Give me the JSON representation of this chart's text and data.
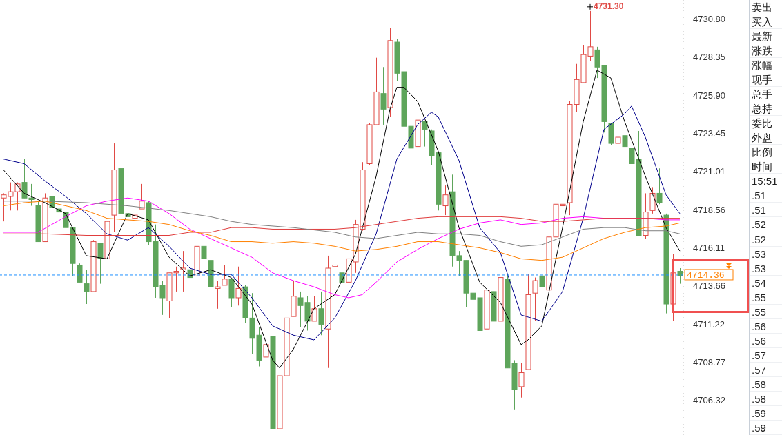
{
  "chart_data": {
    "type": "candlestick",
    "categories": [
      null,
      null,
      null,
      null,
      null,
      null,
      null,
      null,
      null,
      null,
      null,
      null,
      null,
      null,
      null,
      null,
      null,
      null,
      null,
      null,
      null,
      null,
      null,
      null,
      null,
      null,
      null,
      null,
      null,
      null,
      null,
      null,
      null,
      null,
      null,
      null,
      null,
      null,
      null,
      null,
      null,
      null,
      null,
      null,
      null,
      null,
      null,
      null,
      null,
      null,
      null,
      null,
      null,
      null,
      null,
      null,
      null,
      null,
      null,
      null,
      null,
      null,
      null,
      null,
      null,
      null,
      null,
      null,
      null,
      null,
      null,
      null,
      null,
      null,
      null,
      null,
      null,
      null,
      null,
      null,
      null,
      null,
      null,
      null,
      null,
      null,
      null,
      null,
      null,
      null,
      null,
      null,
      null,
      null,
      null,
      null,
      null,
      null,
      null
    ],
    "ohlc": [
      [
        4719.3,
        4719.6,
        4717.8,
        4719.5
      ],
      [
        4719.4,
        4720.3,
        4718.5,
        4719.7
      ],
      [
        4719.7,
        4720.3,
        4718.5,
        4720.2
      ],
      [
        4720.3,
        4721.8,
        4719.3,
        4719.3
      ],
      [
        4719.3,
        4720.2,
        4718.8,
        4719.2
      ],
      [
        4718.8,
        4719.1,
        4716.5,
        4716.5
      ],
      [
        4716.5,
        4719.6,
        4716.5,
        4719.3
      ],
      [
        4719.4,
        4720.0,
        4717.8,
        4718.7
      ],
      [
        4718.6,
        4720.7,
        4718.0,
        4718.4
      ],
      [
        4718.4,
        4718.6,
        4716.8,
        4717.4
      ],
      [
        4717.4,
        4717.4,
        4714.3,
        4715.1
      ],
      [
        4715.0,
        4715.1,
        4713.9,
        4713.9
      ],
      [
        4713.8,
        4714.7,
        4712.5,
        4713.3
      ],
      [
        4713.3,
        4716.6,
        4713.3,
        4716.5
      ],
      [
        4716.4,
        4716.4,
        4713.8,
        4715.4
      ],
      [
        4715.4,
        4717.8,
        4715.4,
        4717.8
      ],
      [
        4718.2,
        4722.8,
        4717.1,
        4721.1
      ],
      [
        4721.2,
        4721.8,
        4718.2,
        4718.3
      ],
      [
        4718.3,
        4719.3,
        4717.0,
        4718.1
      ],
      [
        4718.0,
        4718.4,
        4716.8,
        4718.2
      ],
      [
        4718.6,
        4720.2,
        4718.6,
        4719.1
      ],
      [
        4719.0,
        4719.1,
        4716.3,
        4716.5
      ],
      [
        4716.5,
        4717.6,
        4712.9,
        4713.6
      ],
      [
        4713.7,
        4714.0,
        4711.8,
        4712.9
      ],
      [
        4712.7,
        4714.5,
        4711.6,
        4714.5
      ],
      [
        4714.5,
        4714.9,
        4713.3,
        4714.6
      ],
      [
        4714.7,
        4715.9,
        4713.3,
        4714.8
      ],
      [
        4714.7,
        4715.5,
        4713.8,
        4714.2
      ],
      [
        4714.3,
        4716.6,
        4714.3,
        4716.2
      ],
      [
        4716.2,
        4718.8,
        4715.4,
        4715.4
      ],
      [
        4715.3,
        4715.7,
        4712.6,
        4713.6
      ],
      [
        4713.5,
        4714.0,
        4712.2,
        4713.6
      ],
      [
        4713.7,
        4715.0,
        4713.7,
        4714.1
      ],
      [
        4714.1,
        4714.1,
        4712.3,
        4712.9
      ],
      [
        4712.9,
        4714.9,
        4712.4,
        4713.5
      ],
      [
        4713.6,
        4713.7,
        4711.3,
        4711.6
      ],
      [
        4711.6,
        4713.2,
        4709.3,
        4710.3
      ],
      [
        4710.5,
        4711.0,
        4708.5,
        4708.9
      ],
      [
        4709.1,
        4710.7,
        4708.2,
        4709.9
      ],
      [
        4710.4,
        4711.8,
        4704.5,
        4704.5
      ],
      [
        4704.5,
        4708.2,
        4704.2,
        4707.9
      ],
      [
        4707.9,
        4711.6,
        4707.9,
        4711.6
      ],
      [
        4711.7,
        4714.0,
        4711.7,
        4713.0
      ],
      [
        4712.9,
        4713.3,
        4711.0,
        4712.4
      ],
      [
        4712.6,
        4713.0,
        4710.8,
        4711.4
      ],
      [
        4711.4,
        4713.0,
        4711.4,
        4712.2
      ],
      [
        4712.2,
        4713.3,
        4710.5,
        4711.2
      ],
      [
        4710.9,
        4715.6,
        4708.4,
        4714.8
      ],
      [
        4714.9,
        4715.2,
        4711.1,
        4715.0
      ],
      [
        4714.5,
        4714.8,
        4713.2,
        4713.9
      ],
      [
        4713.9,
        4716.5,
        4713.2,
        4715.4
      ],
      [
        4715.2,
        4717.9,
        4714.5,
        4717.6
      ],
      [
        4717.3,
        4721.6,
        4717.2,
        4721.1
      ],
      [
        4721.5,
        4724.1,
        4721.4,
        4724.0
      ],
      [
        4724.0,
        4728.3,
        4724.0,
        4726.1
      ],
      [
        4726.0,
        4727.7,
        4724.0,
        4725.0
      ],
      [
        4725.1,
        4730.2,
        4724.5,
        4729.4
      ],
      [
        4729.3,
        4729.5,
        4726.8,
        4727.3
      ],
      [
        4727.4,
        4727.5,
        4723.9,
        4723.9
      ],
      [
        4723.9,
        4724.7,
        4722.2,
        4722.5
      ],
      [
        4722.6,
        4725.1,
        4721.9,
        4724.3
      ],
      [
        4724.2,
        4724.2,
        4722.6,
        4723.7
      ],
      [
        4723.6,
        4723.7,
        4721.4,
        4722.0
      ],
      [
        4722.2,
        4722.2,
        4718.5,
        4718.9
      ],
      [
        4718.8,
        4720.1,
        4718.2,
        4719.5
      ],
      [
        4719.7,
        4720.8,
        4714.9,
        4715.6
      ],
      [
        4715.6,
        4715.9,
        4714.3,
        4715.3
      ],
      [
        4715.3,
        4715.3,
        4712.3,
        4713.2
      ],
      [
        4713.2,
        4714.5,
        4712.8,
        4712.8
      ],
      [
        4712.9,
        4713.4,
        4710.0,
        4710.8
      ],
      [
        4710.9,
        4713.6,
        4710.4,
        4713.4
      ],
      [
        4713.3,
        4713.3,
        4711.4,
        4711.4
      ],
      [
        4711.4,
        4714.2,
        4711.4,
        4714.2
      ],
      [
        4714.1,
        4714.4,
        4708.4,
        4708.4
      ],
      [
        4708.7,
        4708.9,
        4705.7,
        4707.0
      ],
      [
        4707.2,
        4708.7,
        4706.5,
        4708.1
      ],
      [
        4708.3,
        4714.4,
        4708.3,
        4713.1
      ],
      [
        4713.2,
        4714.2,
        4711.4,
        4714.0
      ],
      [
        4714.3,
        4714.4,
        4710.4,
        4713.6
      ],
      [
        4713.4,
        4716.9,
        4713.3,
        4716.8
      ],
      [
        4716.8,
        4722.3,
        4716.8,
        4718.9
      ],
      [
        4718.8,
        4720.7,
        4718.7,
        4718.9
      ],
      [
        4719.0,
        4725.5,
        4718.2,
        4725.3
      ],
      [
        4725.3,
        4727.9,
        4724.8,
        4726.9
      ],
      [
        4726.7,
        4729.1,
        4726.7,
        4728.5
      ],
      [
        4728.4,
        4731.3,
        4728.1,
        4729.0
      ],
      [
        4728.8,
        4729.0,
        4727.0,
        4727.7
      ],
      [
        4727.8,
        4727.8,
        4723.5,
        4724.2
      ],
      [
        4724.1,
        4724.1,
        4722.7,
        4722.8
      ],
      [
        4722.8,
        4723.6,
        4722.2,
        4723.2
      ],
      [
        4723.3,
        4723.7,
        4722.5,
        4722.6
      ],
      [
        4722.5,
        4723.0,
        4720.5,
        4721.5
      ],
      [
        4721.8,
        4723.6,
        4716.9,
        4716.9
      ],
      [
        4716.9,
        4719.6,
        4716.7,
        4718.4
      ],
      [
        4718.5,
        4720.0,
        4718.3,
        4719.6
      ],
      [
        4719.6,
        4721.2,
        4718.9,
        4719.0
      ],
      [
        4718.2,
        4718.3,
        4711.9,
        4712.5
      ],
      [
        4712.5,
        4715.7,
        4711.4,
        4714.5
      ],
      [
        4714.6,
        4714.8,
        4713.8,
        4714.3
      ]
    ],
    "series": [
      {
        "type": "line",
        "color": "#000000",
        "values": [
          4721.1,
          null,
          null,
          4719.6,
          null,
          null,
          4719.0,
          null,
          null,
          4718.3,
          null,
          null,
          4715.6,
          null,
          null,
          4715.4,
          null,
          null,
          4718.3,
          null,
          null,
          4717.9,
          null,
          null,
          4715.5,
          null,
          null,
          4714.3,
          null,
          null,
          4714.7,
          null,
          null,
          4714.2,
          null,
          null,
          4712.5,
          null,
          null,
          4708.9,
          4708.4,
          null,
          4709.6,
          null,
          null,
          4712.2,
          null,
          null,
          4713.1,
          null,
          null,
          4715.7,
          null,
          null,
          4720.7,
          null,
          4725.0,
          4726.4,
          4726.4,
          null,
          4725.5,
          null,
          null,
          4722.3,
          null,
          null,
          4717.4,
          null,
          null,
          4713.9,
          null,
          null,
          4712.6,
          null,
          null,
          4709.9,
          4710.2,
          null,
          4711.1,
          null,
          null,
          4717.4,
          null,
          null,
          4724.2,
          null,
          4727.5,
          null,
          4727.0,
          null,
          4724.2,
          null,
          null,
          4720.7,
          null,
          null,
          4717.4,
          null,
          4715.9
        ]
      },
      {
        "type": "line",
        "color": "#00008b",
        "values": [
          4721.8,
          null,
          null,
          4721.5,
          null,
          null,
          4720.4,
          null,
          null,
          4719.4,
          null,
          null,
          4718.3,
          null,
          null,
          4717.0,
          null,
          null,
          4716.6,
          null,
          null,
          4717.4,
          null,
          null,
          4716.2,
          null,
          null,
          4714.8,
          null,
          null,
          4714.4,
          null,
          null,
          4714.4,
          null,
          null,
          4712.9,
          null,
          null,
          4711.1,
          null,
          null,
          4710.5,
          null,
          null,
          4710.2,
          null,
          null,
          4711.6,
          null,
          null,
          4714.0,
          null,
          null,
          4717.0,
          null,
          null,
          4721.8,
          null,
          null,
          4724.0,
          null,
          4724.8,
          4724.5,
          null,
          null,
          4721.7,
          null,
          null,
          4717.4,
          null,
          null,
          4715.8,
          null,
          null,
          4711.8,
          null,
          null,
          4711.4,
          null,
          null,
          4713.3,
          null,
          null,
          4718.0,
          null,
          null,
          4723.7,
          null,
          null,
          4724.7,
          4725.2,
          null,
          4723.2,
          null,
          null,
          4719.5,
          null,
          4718.3
        ]
      },
      {
        "type": "line",
        "color": "#ff00ff",
        "values": [
          4717.1,
          null,
          null,
          null,
          null,
          4717.1,
          null,
          null,
          null,
          4718.1,
          null,
          null,
          4718.8,
          null,
          null,
          4719.1,
          null,
          null,
          4719.3,
          null,
          null,
          4719.1,
          null,
          null,
          4718.3,
          null,
          null,
          4717.3,
          null,
          null,
          4716.7,
          null,
          null,
          4716.1,
          null,
          null,
          4715.5,
          null,
          null,
          4714.5,
          null,
          null,
          4714.0,
          null,
          null,
          4713.6,
          null,
          null,
          4713.1,
          null,
          4712.9,
          null,
          4713.1,
          null,
          4713.9,
          null,
          null,
          4715.2,
          null,
          null,
          4716.0,
          null,
          null,
          4716.7,
          null,
          null,
          4717.3,
          null,
          null,
          4717.7,
          null,
          null,
          4717.9,
          null,
          null,
          4717.6,
          null,
          null,
          4717.7,
          null,
          null,
          4718.0,
          null,
          null,
          4718.1,
          null,
          null,
          4718.0,
          null,
          null,
          4718.0,
          null,
          null,
          4718.0,
          null,
          null,
          4717.9,
          null,
          4717.9
        ]
      },
      {
        "type": "line",
        "color": "#e03c3c",
        "values": [
          4717.0,
          null,
          null,
          null,
          null,
          null,
          4717.0,
          null,
          null,
          null,
          null,
          null,
          4716.9,
          null,
          null,
          null,
          null,
          null,
          4716.9,
          null,
          null,
          null,
          null,
          null,
          4716.9,
          null,
          null,
          4717.1,
          null,
          null,
          4717.1,
          null,
          null,
          4717.4,
          null,
          null,
          4717.4,
          null,
          null,
          4717.3,
          null,
          null,
          4717.3,
          null,
          null,
          null,
          null,
          null,
          4717.3,
          null,
          null,
          4717.4,
          null,
          null,
          4717.6,
          null,
          null,
          4717.8,
          null,
          null,
          4718.0,
          null,
          null,
          4718.1,
          null,
          null,
          4718.1,
          null,
          null,
          4718.1,
          null,
          null,
          4718.1,
          null,
          null,
          4718.0,
          null,
          null,
          4717.8,
          null,
          null,
          4717.8,
          null,
          null,
          4717.9,
          null,
          null,
          4718.0,
          null,
          null,
          4718.0,
          null,
          null,
          4718.0,
          null,
          null,
          4718.0,
          null,
          4718.0
        ]
      },
      {
        "type": "line",
        "color": "#808080",
        "values": [
          4719.1,
          null,
          null,
          null,
          null,
          null,
          4719.1,
          null,
          null,
          null,
          null,
          null,
          4719.0,
          null,
          null,
          null,
          null,
          null,
          4718.8,
          null,
          null,
          null,
          null,
          null,
          4718.5,
          null,
          null,
          null,
          null,
          null,
          4718.1,
          null,
          null,
          4717.8,
          null,
          null,
          4717.6,
          null,
          null,
          null,
          null,
          null,
          4717.4,
          null,
          null,
          null,
          null,
          null,
          4717.1,
          null,
          null,
          4716.8,
          null,
          null,
          4716.7,
          null,
          null,
          4716.9,
          null,
          null,
          4717.1,
          null,
          null,
          4717.0,
          null,
          null,
          4717.0,
          null,
          null,
          4716.9,
          null,
          null,
          4716.5,
          null,
          null,
          4716.2,
          null,
          null,
          4716.3,
          null,
          null,
          4716.8,
          null,
          null,
          4717.3,
          null,
          null,
          4717.4,
          null,
          null,
          4717.4,
          null,
          null,
          4717.2,
          null,
          null,
          4717.2,
          null,
          4717.0
        ]
      },
      {
        "type": "line",
        "color": "#ff8000",
        "values": [
          4718.8,
          null,
          null,
          4719.0,
          null,
          null,
          4719.1,
          null,
          null,
          4718.8,
          null,
          null,
          4718.5,
          null,
          null,
          4718.0,
          null,
          null,
          4717.9,
          null,
          null,
          4717.8,
          null,
          null,
          4717.6,
          null,
          null,
          4717.2,
          null,
          null,
          4716.9,
          null,
          null,
          4716.5,
          null,
          null,
          4716.5,
          null,
          null,
          4716.4,
          null,
          null,
          4716.5,
          null,
          null,
          4716.4,
          null,
          null,
          4716.2,
          null,
          null,
          4715.9,
          null,
          null,
          4716.0,
          null,
          null,
          4716.2,
          null,
          null,
          4716.5,
          null,
          null,
          4716.5,
          null,
          null,
          4716.3,
          null,
          null,
          4716.1,
          null,
          null,
          4715.8,
          null,
          null,
          4715.4,
          null,
          null,
          4715.3,
          null,
          null,
          4715.5,
          null,
          null,
          4716.1,
          null,
          null,
          4716.7,
          null,
          null,
          4717.1,
          null,
          null,
          4717.4,
          null,
          null,
          4717.5,
          null,
          4717.7
        ]
      }
    ],
    "ylim": [
      4704.1,
      4732.0
    ],
    "yticks": [
      {
        "value": 4706.32,
        "label": "4706.32"
      },
      {
        "value": 4708.77,
        "label": "4708.77"
      },
      {
        "value": 4711.22,
        "label": "4711.22"
      },
      {
        "value": 4713.66,
        "label": "4713.66"
      },
      {
        "value": 4716.11,
        "label": "4716.11"
      },
      {
        "value": 4718.56,
        "label": "4718.56"
      },
      {
        "value": 4721.01,
        "label": "4721.01"
      },
      {
        "value": 4723.45,
        "label": "4723.45"
      },
      {
        "value": 4725.9,
        "label": "4725.90"
      },
      {
        "value": 4728.35,
        "label": "4728.35"
      },
      {
        "value": 4730.8,
        "label": "4730.80"
      }
    ],
    "tick_labels": "y",
    "marker": "none",
    "ref_lines": [
      {
        "axis": "y",
        "value": 4714.36,
        "label": "4714.36",
        "color": "#1e90ff",
        "line_style": "dashed"
      }
    ],
    "annotations": [
      "4731.30",
      "卖出",
      "买入",
      "最新",
      "涨跌",
      "涨幅",
      "现手",
      "总手",
      "总持",
      "委比",
      "外盘",
      "比例",
      "时间",
      "15:51",
      ".51",
      ".51",
      ".52",
      ".52",
      ".53",
      ".53",
      ".54",
      ".55",
      ".55",
      ".56",
      ".56",
      ".57",
      ".57",
      ".58",
      ".58",
      ".59",
      ".59"
    ]
  }
}
